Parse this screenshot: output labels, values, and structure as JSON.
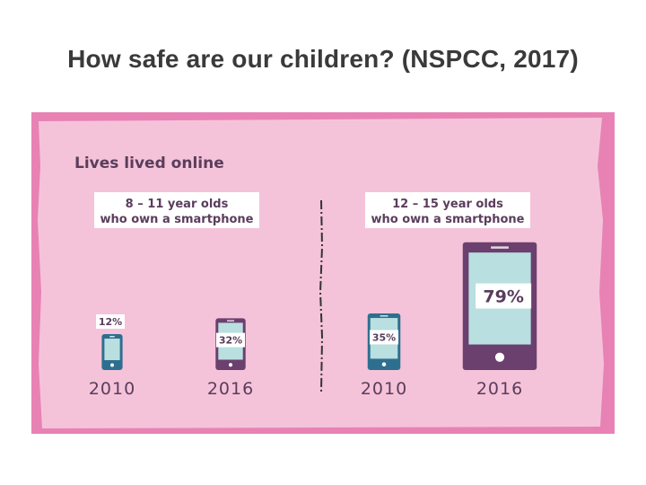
{
  "slide": {
    "title": "How safe are our children? (NSPCC, 2017)"
  },
  "chart_data": {
    "type": "bar",
    "title": "Lives lived online",
    "unit": "%",
    "colors": {
      "frame": "#e882b4",
      "panel": "#f5c3d9",
      "label_box": "#ffffff",
      "text": "#5a3d5c",
      "phone_blue": "#2e6f8f",
      "phone_purple": "#6b3f6e",
      "screen": "#b9dfe0",
      "divider": "#333333"
    },
    "groups": [
      {
        "label_line1": "8 – 11 year olds",
        "label_line2": "who own a smartphone",
        "categories": [
          "2010",
          "2016"
        ],
        "values": [
          12,
          32
        ],
        "value_labels": [
          "12%",
          "32%"
        ]
      },
      {
        "label_line1": "12 – 15 year olds",
        "label_line2": "who own a smartphone",
        "categories": [
          "2010",
          "2016"
        ],
        "values": [
          35,
          79
        ],
        "value_labels": [
          "35%",
          "79%"
        ]
      }
    ]
  }
}
